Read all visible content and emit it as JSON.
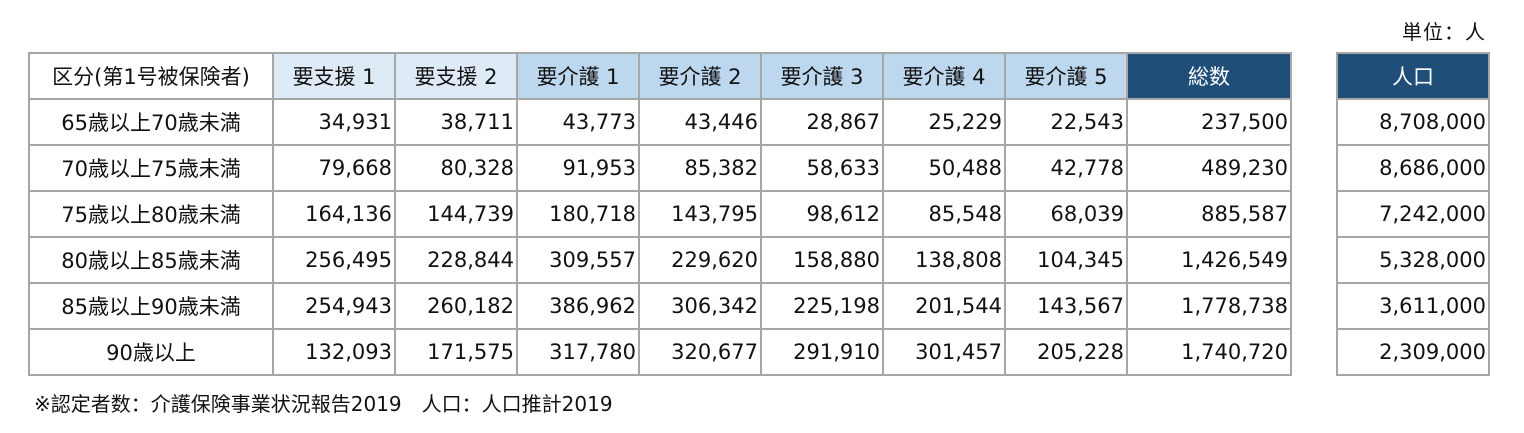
{
  "unit_label": "単位：人",
  "table": {
    "headers": [
      "区分(第1号被保険者)",
      "要支援 1",
      "要支援 2",
      "要介護 1",
      "要介護 2",
      "要介護 3",
      "要介護 4",
      "要介護 5",
      "総数"
    ],
    "header_colors": {
      "support": "#deebf7",
      "care": "#bdd7ee",
      "total": "#1f4e79"
    },
    "rows": [
      {
        "label": "65歳以上70歳未満",
        "values": [
          "34,931",
          "38,711",
          "43,773",
          "43,446",
          "28,867",
          "25,229",
          "22,543",
          "237,500"
        ]
      },
      {
        "label": "70歳以上75歳未満",
        "values": [
          "79,668",
          "80,328",
          "91,953",
          "85,382",
          "58,633",
          "50,488",
          "42,778",
          "489,230"
        ]
      },
      {
        "label": "75歳以上80歳未満",
        "values": [
          "164,136",
          "144,739",
          "180,718",
          "143,795",
          "98,612",
          "85,548",
          "68,039",
          "885,587"
        ]
      },
      {
        "label": "80歳以上85歳未満",
        "values": [
          "256,495",
          "228,844",
          "309,557",
          "229,620",
          "158,880",
          "138,808",
          "104,345",
          "1,426,549"
        ]
      },
      {
        "label": "85歳以上90歳未満",
        "values": [
          "254,943",
          "260,182",
          "386,962",
          "306,342",
          "225,198",
          "201,544",
          "143,567",
          "1,778,738"
        ]
      },
      {
        "label": "90歳以上",
        "values": [
          "132,093",
          "171,575",
          "317,780",
          "320,677",
          "291,910",
          "301,457",
          "205,228",
          "1,740,720"
        ]
      }
    ]
  },
  "population_table": {
    "header": "人口",
    "values": [
      "8,708,000",
      "8,686,000",
      "7,242,000",
      "5,328,000",
      "3,611,000",
      "2,309,000"
    ]
  },
  "footnote": "※認定者数：介護保険事業状況報告2019　人口：人口推計2019"
}
